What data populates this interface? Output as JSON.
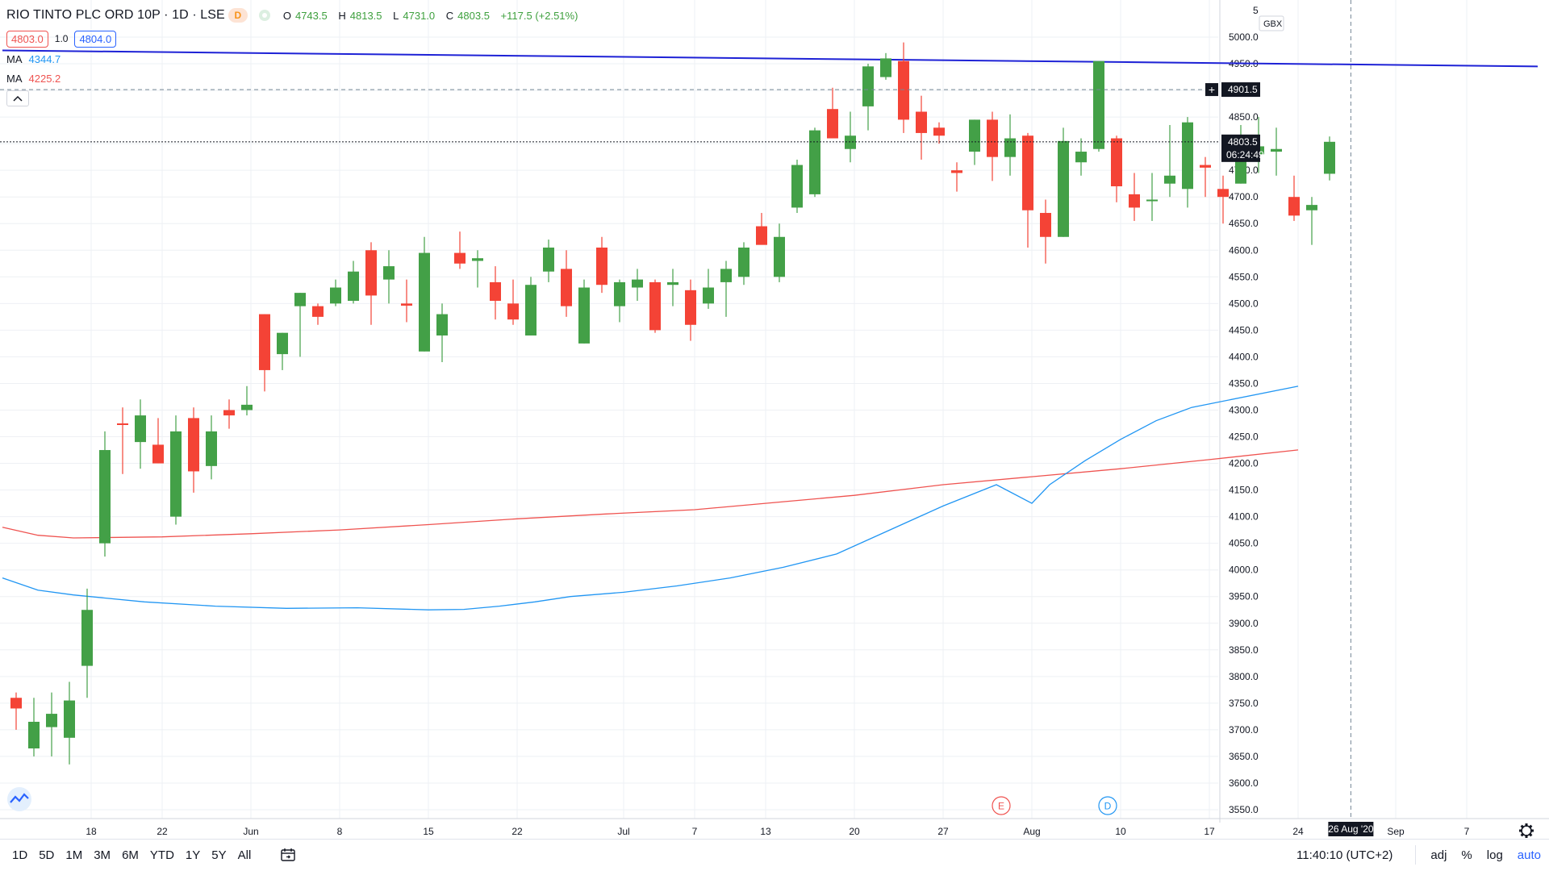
{
  "symbol": {
    "title": "RIO TINTO PLC ORD 10P · 1D · LSE",
    "dividend_badge": "D"
  },
  "ohlc": {
    "o_label": "O",
    "o": "4743.5",
    "h_label": "H",
    "h": "4813.5",
    "l_label": "L",
    "l": "4731.0",
    "c_label": "C",
    "c": "4803.5",
    "change": "+117.5 (+2.51%)"
  },
  "quote": {
    "bid": "4803.0",
    "spread": "1.0",
    "ask": "4804.0"
  },
  "indicators": [
    {
      "label": "MA",
      "value": "4344.7",
      "color": "#2196f3"
    },
    {
      "label": "MA",
      "value": "4225.2",
      "color": "#ef5350"
    }
  ],
  "collapse_icon": "chevron-up-icon",
  "axis": {
    "currency": "GBX",
    "top_tick": "5",
    "price_ticks": [
      "5000.0",
      "4950.0",
      "4900.0",
      "4850.0",
      "4800.0",
      "4750.0",
      "4700.0",
      "4650.0",
      "4600.0",
      "4550.0",
      "4500.0",
      "4450.0",
      "4400.0",
      "4350.0",
      "4300.0",
      "4250.0",
      "4200.0",
      "4150.0",
      "4100.0",
      "4050.0",
      "4000.0",
      "3950.0",
      "3900.0",
      "3850.0",
      "3800.0",
      "3750.0",
      "3700.0",
      "3650.0",
      "3600.0",
      "3550.0"
    ],
    "date_ticks": [
      {
        "label": "18",
        "i": 5
      },
      {
        "label": "22",
        "i": 9
      },
      {
        "label": "Jun",
        "i": 14
      },
      {
        "label": "8",
        "i": 19
      },
      {
        "label": "15",
        "i": 24
      },
      {
        "label": "22",
        "i": 29
      },
      {
        "label": "Jul",
        "i": 35
      },
      {
        "label": "7",
        "i": 39
      },
      {
        "label": "13",
        "i": 43
      },
      {
        "label": "20",
        "i": 48
      },
      {
        "label": "27",
        "i": 53
      },
      {
        "label": "Aug",
        "i": 58
      },
      {
        "label": "10",
        "i": 63
      },
      {
        "label": "17",
        "i": 68
      },
      {
        "label": "24",
        "i": 73
      },
      {
        "label": "Sep",
        "i": 78.5
      },
      {
        "label": "7",
        "i": 82.5
      }
    ],
    "crosshair_date": "26 Aug '20",
    "crosshair_price": "4901.5",
    "last_price": "4803.5",
    "countdown": "06:24:49"
  },
  "events": [
    {
      "label": "E",
      "i": 55.5,
      "color": "#ef5350"
    },
    {
      "label": "D",
      "i": 61.5,
      "color": "#2196f3"
    }
  ],
  "colors": {
    "up": "#43a047",
    "down": "#f44336",
    "trendline": "#1e22d6",
    "ma_fast": "#2196f3",
    "ma_slow": "#ef5350"
  },
  "toolbar": {
    "ranges": [
      "1D",
      "5D",
      "1M",
      "3M",
      "6M",
      "YTD",
      "1Y",
      "5Y",
      "All"
    ],
    "calendar_icon": "calendar-goto-icon",
    "time": "11:40:10 (UTC+2)",
    "adj": "adj",
    "percent": "%",
    "log": "log",
    "auto": "auto",
    "settings_icon": "gear-icon"
  },
  "chart_data": {
    "type": "candlestick",
    "x_first_date_approx": "2020-05-11",
    "ylim": [
      3530,
      5020
    ],
    "candles": [
      {
        "o": 3760,
        "h": 3770,
        "l": 3700,
        "c": 3740
      },
      {
        "o": 3665,
        "h": 3760,
        "l": 3650,
        "c": 3715
      },
      {
        "o": 3705,
        "h": 3770,
        "l": 3650,
        "c": 3730
      },
      {
        "o": 3685,
        "h": 3790,
        "l": 3635,
        "c": 3755
      },
      {
        "o": 3820,
        "h": 3965,
        "l": 3760,
        "c": 3925
      },
      {
        "o": 4050,
        "h": 4260,
        "l": 4025,
        "c": 4225
      },
      {
        "o": 4275,
        "h": 4305,
        "l": 4180,
        "c": 4272
      },
      {
        "o": 4240,
        "h": 4320,
        "l": 4190,
        "c": 4290
      },
      {
        "o": 4235,
        "h": 4285,
        "l": 4200,
        "c": 4200
      },
      {
        "o": 4100,
        "h": 4290,
        "l": 4085,
        "c": 4260
      },
      {
        "o": 4285,
        "h": 4305,
        "l": 4145,
        "c": 4185
      },
      {
        "o": 4195,
        "h": 4290,
        "l": 4170,
        "c": 4260
      },
      {
        "o": 4300,
        "h": 4320,
        "l": 4265,
        "c": 4290
      },
      {
        "o": 4300,
        "h": 4345,
        "l": 4290,
        "c": 4310
      },
      {
        "o": 4480,
        "h": 4480,
        "l": 4335,
        "c": 4375
      },
      {
        "o": 4405,
        "h": 4445,
        "l": 4375,
        "c": 4445
      },
      {
        "o": 4495,
        "h": 4520,
        "l": 4400,
        "c": 4520
      },
      {
        "o": 4495,
        "h": 4500,
        "l": 4460,
        "c": 4475
      },
      {
        "o": 4500,
        "h": 4545,
        "l": 4495,
        "c": 4530
      },
      {
        "o": 4505,
        "h": 4580,
        "l": 4500,
        "c": 4560
      },
      {
        "o": 4600,
        "h": 4615,
        "l": 4460,
        "c": 4515
      },
      {
        "o": 4545,
        "h": 4600,
        "l": 4500,
        "c": 4570
      },
      {
        "o": 4500,
        "h": 4545,
        "l": 4465,
        "c": 4496
      },
      {
        "o": 4410,
        "h": 4625,
        "l": 4410,
        "c": 4595
      },
      {
        "o": 4440,
        "h": 4500,
        "l": 4390,
        "c": 4480
      },
      {
        "o": 4595,
        "h": 4635,
        "l": 4565,
        "c": 4575
      },
      {
        "o": 4580,
        "h": 4600,
        "l": 4530,
        "c": 4585
      },
      {
        "o": 4540,
        "h": 4570,
        "l": 4470,
        "c": 4505
      },
      {
        "o": 4500,
        "h": 4545,
        "l": 4460,
        "c": 4470
      },
      {
        "o": 4440,
        "h": 4550,
        "l": 4440,
        "c": 4535
      },
      {
        "o": 4560,
        "h": 4620,
        "l": 4540,
        "c": 4605
      },
      {
        "o": 4565,
        "h": 4600,
        "l": 4475,
        "c": 4495
      },
      {
        "o": 4425,
        "h": 4545,
        "l": 4425,
        "c": 4530
      },
      {
        "o": 4605,
        "h": 4625,
        "l": 4520,
        "c": 4535
      },
      {
        "o": 4495,
        "h": 4545,
        "l": 4465,
        "c": 4540
      },
      {
        "o": 4530,
        "h": 4565,
        "l": 4505,
        "c": 4545
      },
      {
        "o": 4540,
        "h": 4545,
        "l": 4445,
        "c": 4450
      },
      {
        "o": 4535,
        "h": 4565,
        "l": 4495,
        "c": 4540
      },
      {
        "o": 4525,
        "h": 4545,
        "l": 4430,
        "c": 4460
      },
      {
        "o": 4500,
        "h": 4565,
        "l": 4490,
        "c": 4530
      },
      {
        "o": 4540,
        "h": 4580,
        "l": 4475,
        "c": 4565
      },
      {
        "o": 4550,
        "h": 4615,
        "l": 4535,
        "c": 4605
      },
      {
        "o": 4645,
        "h": 4670,
        "l": 4620,
        "c": 4610
      },
      {
        "o": 4550,
        "h": 4650,
        "l": 4540,
        "c": 4625
      },
      {
        "o": 4680,
        "h": 4770,
        "l": 4670,
        "c": 4760
      },
      {
        "o": 4705,
        "h": 4830,
        "l": 4700,
        "c": 4825
      },
      {
        "o": 4865,
        "h": 4905,
        "l": 4815,
        "c": 4810
      },
      {
        "o": 4790,
        "h": 4860,
        "l": 4765,
        "c": 4815
      },
      {
        "o": 4870,
        "h": 4950,
        "l": 4825,
        "c": 4945
      },
      {
        "o": 4925,
        "h": 4970,
        "l": 4920,
        "c": 4960
      },
      {
        "o": 4955,
        "h": 4990,
        "l": 4820,
        "c": 4845
      },
      {
        "o": 4860,
        "h": 4890,
        "l": 4770,
        "c": 4820
      },
      {
        "o": 4830,
        "h": 4840,
        "l": 4800,
        "c": 4815
      },
      {
        "o": 4750,
        "h": 4765,
        "l": 4710,
        "c": 4745
      },
      {
        "o": 4785,
        "h": 4845,
        "l": 4760,
        "c": 4845
      },
      {
        "o": 4845,
        "h": 4860,
        "l": 4730,
        "c": 4775
      },
      {
        "o": 4775,
        "h": 4855,
        "l": 4740,
        "c": 4810
      },
      {
        "o": 4815,
        "h": 4820,
        "l": 4605,
        "c": 4675
      },
      {
        "o": 4670,
        "h": 4695,
        "l": 4575,
        "c": 4625
      },
      {
        "o": 4625,
        "h": 4830,
        "l": 4625,
        "c": 4805
      },
      {
        "o": 4765,
        "h": 4810,
        "l": 4740,
        "c": 4785
      },
      {
        "o": 4790,
        "h": 4955,
        "l": 4785,
        "c": 4955
      },
      {
        "o": 4810,
        "h": 4815,
        "l": 4690,
        "c": 4720
      },
      {
        "o": 4705,
        "h": 4745,
        "l": 4655,
        "c": 4680
      },
      {
        "o": 4695,
        "h": 4745,
        "l": 4655,
        "c": 4695
      },
      {
        "o": 4725,
        "h": 4835,
        "l": 4700,
        "c": 4740
      },
      {
        "o": 4715,
        "h": 4850,
        "l": 4680,
        "c": 4840
      },
      {
        "o": 4760,
        "h": 4775,
        "l": 4700,
        "c": 4755
      },
      {
        "o": 4715,
        "h": 4740,
        "l": 4650,
        "c": 4700
      },
      {
        "o": 4725,
        "h": 4835,
        "l": 4725,
        "c": 4775
      },
      {
        "o": 4780,
        "h": 4850,
        "l": 4745,
        "c": 4795
      },
      {
        "o": 4785,
        "h": 4830,
        "l": 4740,
        "c": 4790
      },
      {
        "o": 4700,
        "h": 4740,
        "l": 4655,
        "c": 4665
      },
      {
        "o": 4675,
        "h": 4700,
        "l": 4610,
        "c": 4685
      },
      {
        "o": 4743.5,
        "h": 4813.5,
        "l": 4731,
        "c": 4803.5
      }
    ],
    "ma_fast": [
      [
        0,
        3985
      ],
      [
        2,
        3962
      ],
      [
        4,
        3953
      ],
      [
        8,
        3940
      ],
      [
        12,
        3932
      ],
      [
        16,
        3928
      ],
      [
        20,
        3929
      ],
      [
        24,
        3925
      ],
      [
        26,
        3926
      ],
      [
        28,
        3932
      ],
      [
        30,
        3940
      ],
      [
        32,
        3950
      ],
      [
        35,
        3958
      ],
      [
        38,
        3970
      ],
      [
        41,
        3985
      ],
      [
        44,
        4005
      ],
      [
        47,
        4030
      ],
      [
        50,
        4075
      ],
      [
        53,
        4120
      ],
      [
        56,
        4160
      ],
      [
        58,
        4200
      ],
      [
        60,
        4245
      ],
      [
        61,
        4290
      ],
      [
        63,
        4320
      ],
      [
        65,
        4360
      ],
      [
        67,
        4410
      ],
      [
        68,
        4455
      ],
      [
        71,
        4500
      ],
      [
        73,
        4344.7
      ]
    ],
    "ma_fast_late": [
      [
        58,
        4125
      ],
      [
        59,
        4160
      ],
      [
        61,
        4205
      ],
      [
        63,
        4245
      ],
      [
        65,
        4280
      ],
      [
        67,
        4305
      ],
      [
        73,
        4344.7
      ]
    ],
    "ma_slow": [
      [
        0,
        4080
      ],
      [
        2,
        4065
      ],
      [
        4,
        4060
      ],
      [
        9,
        4062
      ],
      [
        14,
        4068
      ],
      [
        19,
        4075
      ],
      [
        24,
        4085
      ],
      [
        29,
        4096
      ],
      [
        34,
        4105
      ],
      [
        39,
        4113
      ],
      [
        44,
        4128
      ],
      [
        48,
        4140
      ],
      [
        53,
        4160
      ],
      [
        58,
        4175
      ],
      [
        63,
        4190
      ],
      [
        68,
        4207
      ],
      [
        73,
        4225.2
      ]
    ],
    "trendline": [
      [
        0,
        4975
      ],
      [
        86.5,
        4945
      ]
    ],
    "crosshair": {
      "i": 75.2,
      "price": 4901.5
    },
    "last_price": 4803.5
  }
}
